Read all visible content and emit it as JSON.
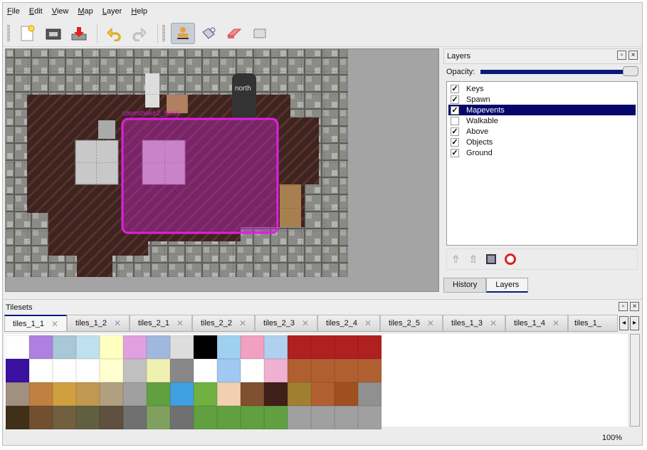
{
  "menu": [
    "File",
    "Edit",
    "View",
    "Map",
    "Layer",
    "Help"
  ],
  "toolbar": {
    "icons": [
      "new-icon",
      "open-icon",
      "save-icon",
      "undo-icon",
      "redo-icon",
      "stamp-brush-icon",
      "bucket-fill-icon",
      "eraser-icon",
      "rect-select-icon"
    ],
    "active": "stamp-brush-icon"
  },
  "map": {
    "object_label": "caveshake2_boss",
    "door_label": "north",
    "selection_color": "#e020e0"
  },
  "layers_panel": {
    "title": "Layers",
    "opacity_label": "Opacity:",
    "opacity": 1.0,
    "layers": [
      {
        "name": "Keys",
        "visible": true
      },
      {
        "name": "Spawn",
        "visible": true
      },
      {
        "name": "Mapevents",
        "visible": true,
        "selected": true
      },
      {
        "name": "Walkable",
        "visible": false
      },
      {
        "name": "Above",
        "visible": true
      },
      {
        "name": "Objects",
        "visible": true
      },
      {
        "name": "Ground",
        "visible": true
      }
    ],
    "tabs": [
      "History",
      "Layers"
    ],
    "active_tab": "Layers"
  },
  "tilesets": {
    "title": "Tilesets",
    "tabs": [
      "tiles_1_1",
      "tiles_1_2",
      "tiles_2_1",
      "tiles_2_2",
      "tiles_2_3",
      "tiles_2_4",
      "tiles_2_5",
      "tiles_1_3",
      "tiles_1_4",
      "tiles_1_"
    ],
    "active": "tiles_1_1"
  },
  "status": {
    "zoom": "100%"
  }
}
